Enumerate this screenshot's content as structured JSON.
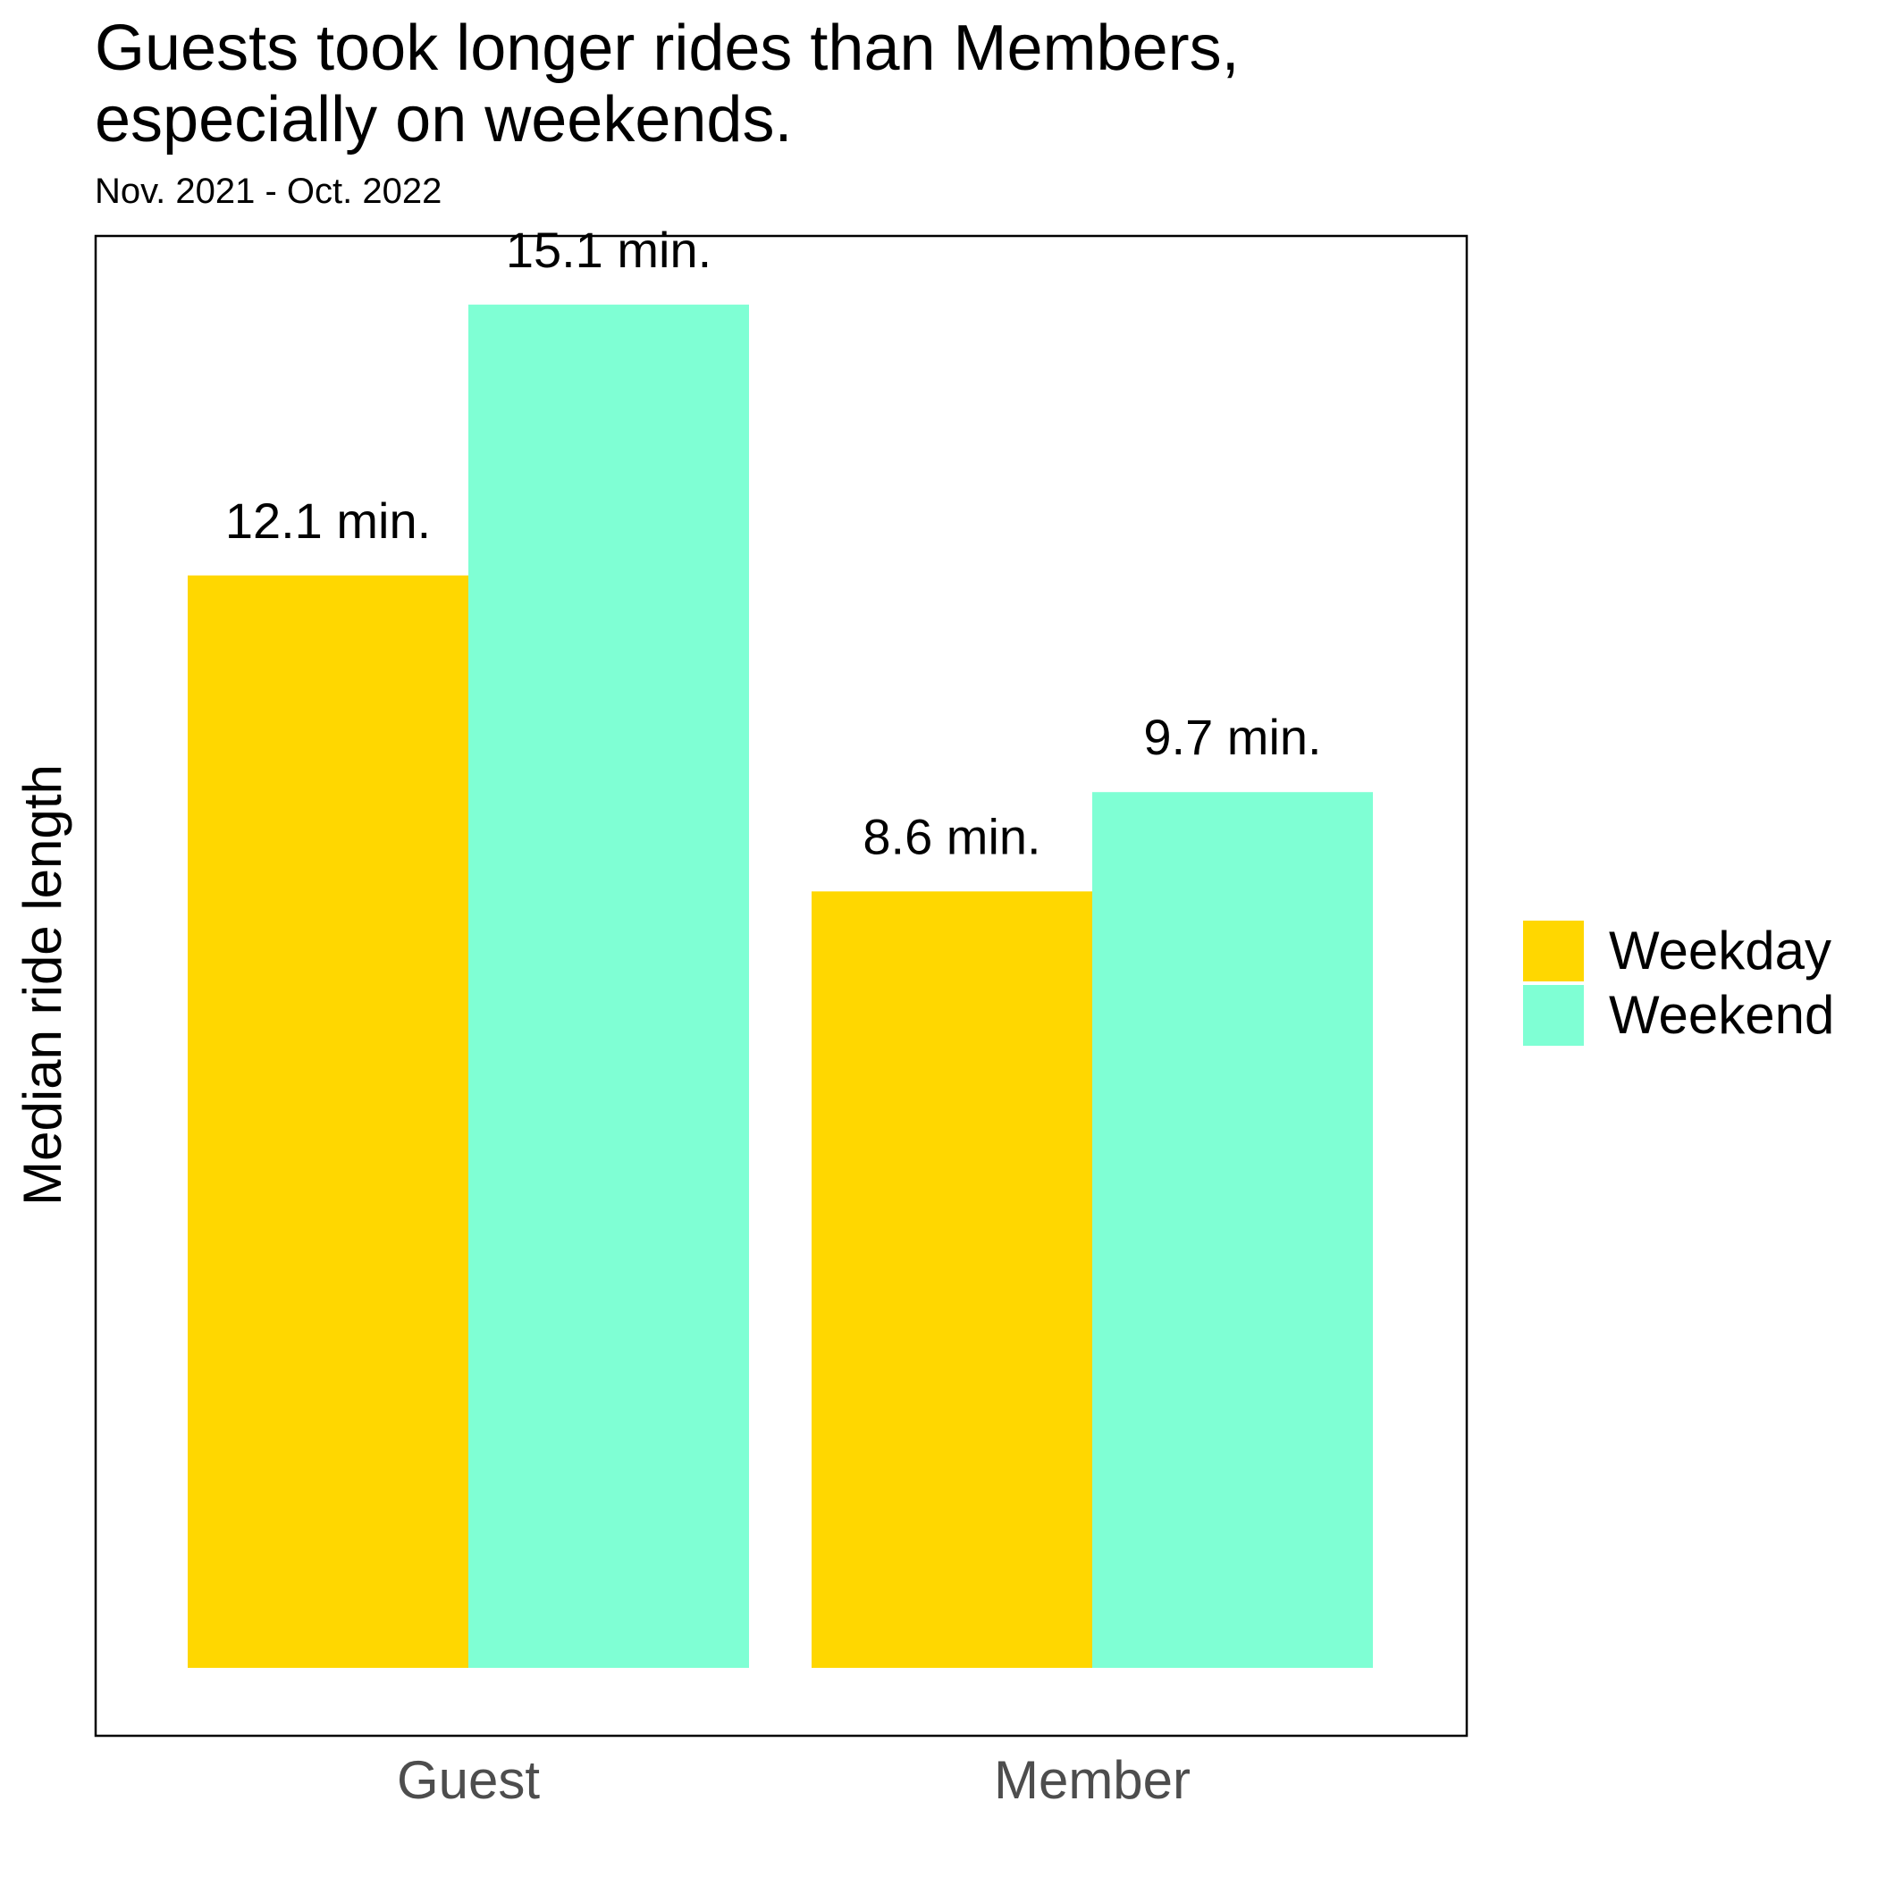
{
  "title_lines": [
    "Guests took longer rides than Members,",
    "especially on weekends."
  ],
  "subtitle": "Nov. 2021 - Oct. 2022",
  "chart_data": {
    "type": "bar",
    "title": "Guests took longer rides than Members, especially on weekends.",
    "subtitle": "Nov. 2021 - Oct. 2022",
    "xlabel": "",
    "ylabel": "Median ride length",
    "categories": [
      "Guest",
      "Member"
    ],
    "series": [
      {
        "name": "Weekday",
        "color": "#FFD700",
        "values": [
          12.1,
          8.6
        ],
        "labels": [
          "12.1 min.",
          "8.6 min."
        ]
      },
      {
        "name": "Weekend",
        "color": "#7FFFD4",
        "values": [
          15.1,
          9.7
        ],
        "labels": [
          "15.1 min.",
          "9.7 min."
        ]
      }
    ],
    "ylim": [
      0,
      15.86
    ],
    "y_ticks_shown": false,
    "grid": false,
    "panel_border": true,
    "legend_position": "right"
  }
}
